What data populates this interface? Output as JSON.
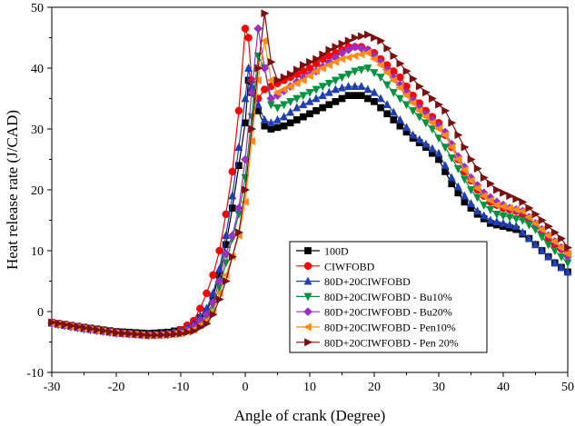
{
  "chart_data": {
    "type": "line",
    "title": "",
    "xlabel": "Angle of crank (Degree)",
    "ylabel": "Heat release rate (J/CAD)",
    "xlim": [
      -30,
      50
    ],
    "ylim": [
      -10,
      50
    ],
    "xticks": [
      -30,
      -20,
      -10,
      0,
      10,
      20,
      30,
      40,
      50
    ],
    "yticks": [
      -10,
      0,
      10,
      20,
      30,
      40,
      50
    ],
    "grid": false,
    "legend_position": "bottom-center",
    "series": [
      {
        "name": "100D",
        "color": "#000000",
        "marker": "square",
        "points": [
          [
            -30,
            -1.8
          ],
          [
            -25,
            -2.6
          ],
          [
            -20,
            -3.3
          ],
          [
            -15,
            -3.6
          ],
          [
            -12,
            -3.4
          ],
          [
            -10,
            -3.0
          ],
          [
            -8,
            -2.0
          ],
          [
            -6,
            0.0
          ],
          [
            -5,
            2.5
          ],
          [
            -4,
            6.0
          ],
          [
            -3,
            11.0
          ],
          [
            -2,
            17.0
          ],
          [
            -1,
            24.0
          ],
          [
            0,
            31.0
          ],
          [
            0.5,
            38.0
          ],
          [
            1,
            36.0
          ],
          [
            2,
            33.0
          ],
          [
            3,
            30.5
          ],
          [
            4,
            30.0
          ],
          [
            6,
            30.5
          ],
          [
            8,
            31.5
          ],
          [
            10,
            32.5
          ],
          [
            12,
            33.5
          ],
          [
            14,
            34.5
          ],
          [
            16,
            35.5
          ],
          [
            18,
            35.5
          ],
          [
            20,
            34.5
          ],
          [
            22,
            32.5
          ],
          [
            24,
            30.5
          ],
          [
            26,
            28.5
          ],
          [
            28,
            27.0
          ],
          [
            30,
            25.0
          ],
          [
            32,
            21.0
          ],
          [
            34,
            18.0
          ],
          [
            36,
            16.0
          ],
          [
            38,
            14.5
          ],
          [
            40,
            14.0
          ],
          [
            42,
            13.5
          ],
          [
            44,
            12.0
          ],
          [
            46,
            10.0
          ],
          [
            48,
            8.0
          ],
          [
            50,
            6.5
          ]
        ]
      },
      {
        "name": "CIWFOBD",
        "color": "#ff0000",
        "marker": "circle",
        "points": [
          [
            -30,
            -1.8
          ],
          [
            -25,
            -2.7
          ],
          [
            -20,
            -3.5
          ],
          [
            -15,
            -3.9
          ],
          [
            -13,
            -3.8
          ],
          [
            -11,
            -3.5
          ],
          [
            -10,
            -3.0
          ],
          [
            -8,
            -1.5
          ],
          [
            -7,
            0.5
          ],
          [
            -6,
            3.0
          ],
          [
            -5,
            6.0
          ],
          [
            -4,
            10.0
          ],
          [
            -3,
            16.0
          ],
          [
            -2,
            23.0
          ],
          [
            -1,
            33.0
          ],
          [
            0,
            46.5
          ],
          [
            0.5,
            45.0
          ],
          [
            1,
            38.0
          ],
          [
            2,
            35.0
          ],
          [
            3,
            36.5
          ],
          [
            4,
            37.0
          ],
          [
            6,
            38.0
          ],
          [
            8,
            39.0
          ],
          [
            10,
            40.0
          ],
          [
            12,
            41.5
          ],
          [
            14,
            42.5
          ],
          [
            16,
            43.5
          ],
          [
            18,
            43.5
          ],
          [
            20,
            42.5
          ],
          [
            22,
            40.5
          ],
          [
            24,
            38.5
          ],
          [
            26,
            35.5
          ],
          [
            28,
            33.0
          ],
          [
            30,
            31.0
          ],
          [
            32,
            27.0
          ],
          [
            34,
            23.0
          ],
          [
            36,
            20.0
          ],
          [
            38,
            18.0
          ],
          [
            40,
            17.0
          ],
          [
            42,
            16.5
          ],
          [
            44,
            15.0
          ],
          [
            46,
            13.0
          ],
          [
            48,
            11.0
          ],
          [
            50,
            9.5
          ]
        ]
      },
      {
        "name": "80D+20CIWFOBD",
        "color": "#1f3fb0",
        "marker": "triangle-up",
        "points": [
          [
            -30,
            -1.9
          ],
          [
            -25,
            -2.8
          ],
          [
            -20,
            -3.5
          ],
          [
            -15,
            -3.8
          ],
          [
            -12,
            -3.6
          ],
          [
            -10,
            -3.2
          ],
          [
            -8,
            -2.0
          ],
          [
            -6,
            0.5
          ],
          [
            -5,
            3.0
          ],
          [
            -4,
            7.0
          ],
          [
            -3,
            12.5
          ],
          [
            -2,
            19.0
          ],
          [
            -1,
            27.0
          ],
          [
            0,
            35.0
          ],
          [
            0.5,
            40.0
          ],
          [
            1,
            37.0
          ],
          [
            2,
            34.0
          ],
          [
            3,
            31.5
          ],
          [
            4,
            31.0
          ],
          [
            6,
            32.0
          ],
          [
            8,
            33.5
          ],
          [
            10,
            34.5
          ],
          [
            12,
            35.5
          ],
          [
            14,
            36.5
          ],
          [
            16,
            37.0
          ],
          [
            18,
            37.0
          ],
          [
            20,
            36.0
          ],
          [
            22,
            34.0
          ],
          [
            24,
            31.5
          ],
          [
            26,
            29.0
          ],
          [
            28,
            27.5
          ],
          [
            30,
            26.0
          ],
          [
            32,
            22.0
          ],
          [
            34,
            19.0
          ],
          [
            36,
            16.5
          ],
          [
            38,
            15.0
          ],
          [
            40,
            14.5
          ],
          [
            42,
            14.0
          ],
          [
            44,
            12.0
          ],
          [
            46,
            10.0
          ],
          [
            48,
            8.0
          ],
          [
            50,
            6.5
          ]
        ]
      },
      {
        "name": "80D+20CIWFOBD - Bu10%",
        "color": "#00923f",
        "marker": "triangle-down",
        "points": [
          [
            -30,
            -2.0
          ],
          [
            -25,
            -2.9
          ],
          [
            -20,
            -3.6
          ],
          [
            -15,
            -3.9
          ],
          [
            -12,
            -3.8
          ],
          [
            -10,
            -3.5
          ],
          [
            -8,
            -2.8
          ],
          [
            -6,
            -1.0
          ],
          [
            -5,
            1.0
          ],
          [
            -4,
            4.0
          ],
          [
            -3,
            8.0
          ],
          [
            -2,
            12.0
          ],
          [
            -1,
            16.0
          ],
          [
            0,
            22.0
          ],
          [
            1,
            32.0
          ],
          [
            2,
            42.0
          ],
          [
            3,
            40.0
          ],
          [
            4,
            34.0
          ],
          [
            5,
            33.5
          ],
          [
            7,
            34.5
          ],
          [
            9,
            35.5
          ],
          [
            11,
            36.5
          ],
          [
            13,
            37.5
          ],
          [
            15,
            38.5
          ],
          [
            17,
            39.5
          ],
          [
            19,
            40.0
          ],
          [
            21,
            38.5
          ],
          [
            23,
            36.0
          ],
          [
            25,
            34.0
          ],
          [
            27,
            32.0
          ],
          [
            29,
            30.0
          ],
          [
            31,
            27.0
          ],
          [
            33,
            23.5
          ],
          [
            35,
            20.0
          ],
          [
            37,
            17.5
          ],
          [
            39,
            16.0
          ],
          [
            41,
            15.5
          ],
          [
            43,
            15.0
          ],
          [
            45,
            13.5
          ],
          [
            47,
            11.0
          ],
          [
            49,
            9.0
          ],
          [
            50,
            8.0
          ]
        ]
      },
      {
        "name": "80D+20CIWFOBD - Bu20%",
        "color": "#9b30c0",
        "marker": "diamond",
        "points": [
          [
            -30,
            -1.9
          ],
          [
            -25,
            -2.8
          ],
          [
            -20,
            -3.5
          ],
          [
            -15,
            -3.9
          ],
          [
            -12,
            -3.8
          ],
          [
            -10,
            -3.5
          ],
          [
            -8,
            -2.5
          ],
          [
            -6,
            -0.5
          ],
          [
            -5,
            1.5
          ],
          [
            -4,
            5.0
          ],
          [
            -3,
            9.5
          ],
          [
            -2,
            12.5
          ],
          [
            -1,
            17.0
          ],
          [
            0,
            25.0
          ],
          [
            1,
            36.0
          ],
          [
            2,
            46.5
          ],
          [
            3,
            40.0
          ],
          [
            4,
            35.0
          ],
          [
            5,
            35.5
          ],
          [
            7,
            37.0
          ],
          [
            9,
            38.5
          ],
          [
            11,
            39.5
          ],
          [
            13,
            41.0
          ],
          [
            15,
            42.5
          ],
          [
            17,
            43.5
          ],
          [
            19,
            43.0
          ],
          [
            21,
            41.0
          ],
          [
            23,
            38.5
          ],
          [
            25,
            36.0
          ],
          [
            27,
            33.5
          ],
          [
            29,
            31.5
          ],
          [
            31,
            29.5
          ],
          [
            33,
            25.5
          ],
          [
            35,
            22.0
          ],
          [
            37,
            19.5
          ],
          [
            39,
            18.0
          ],
          [
            41,
            17.0
          ],
          [
            43,
            16.5
          ],
          [
            45,
            14.5
          ],
          [
            47,
            12.5
          ],
          [
            49,
            10.5
          ],
          [
            50,
            9.0
          ]
        ]
      },
      {
        "name": "80D+20CIWFOBD - Pen10%",
        "color": "#ff8c1a",
        "marker": "triangle-left",
        "points": [
          [
            -30,
            -1.9
          ],
          [
            -25,
            -2.8
          ],
          [
            -20,
            -3.5
          ],
          [
            -15,
            -3.9
          ],
          [
            -12,
            -3.8
          ],
          [
            -10,
            -3.6
          ],
          [
            -8,
            -3.0
          ],
          [
            -6,
            -1.5
          ],
          [
            -5,
            0.0
          ],
          [
            -4,
            3.0
          ],
          [
            -3,
            6.0
          ],
          [
            -2,
            9.0
          ],
          [
            -1,
            12.5
          ],
          [
            0,
            18.0
          ],
          [
            1,
            28.0
          ],
          [
            2,
            38.0
          ],
          [
            3,
            44.5
          ],
          [
            4,
            38.0
          ],
          [
            5,
            36.0
          ],
          [
            7,
            37.0
          ],
          [
            9,
            38.0
          ],
          [
            11,
            39.5
          ],
          [
            13,
            40.5
          ],
          [
            15,
            41.5
          ],
          [
            17,
            42.0
          ],
          [
            19,
            42.5
          ],
          [
            21,
            40.5
          ],
          [
            23,
            38.0
          ],
          [
            25,
            35.5
          ],
          [
            27,
            33.0
          ],
          [
            29,
            31.0
          ],
          [
            31,
            29.0
          ],
          [
            33,
            25.0
          ],
          [
            35,
            21.5
          ],
          [
            37,
            19.0
          ],
          [
            39,
            17.5
          ],
          [
            41,
            17.0
          ],
          [
            43,
            16.5
          ],
          [
            45,
            14.5
          ],
          [
            47,
            12.5
          ],
          [
            49,
            10.5
          ],
          [
            50,
            9.5
          ]
        ]
      },
      {
        "name": "80D+20CIWFOBD - Pen 20%",
        "color": "#7a1010",
        "marker": "triangle-right",
        "points": [
          [
            -30,
            -1.8
          ],
          [
            -25,
            -2.7
          ],
          [
            -20,
            -3.5
          ],
          [
            -15,
            -3.9
          ],
          [
            -12,
            -3.8
          ],
          [
            -10,
            -3.6
          ],
          [
            -8,
            -3.2
          ],
          [
            -6,
            -2.0
          ],
          [
            -5,
            -0.5
          ],
          [
            -4,
            2.0
          ],
          [
            -3,
            5.0
          ],
          [
            -2,
            9.0
          ],
          [
            -1,
            13.0
          ],
          [
            0,
            20.0
          ],
          [
            1,
            30.0
          ],
          [
            2,
            40.0
          ],
          [
            3,
            49.0
          ],
          [
            4,
            41.0
          ],
          [
            5,
            38.0
          ],
          [
            7,
            39.0
          ],
          [
            9,
            40.5
          ],
          [
            11,
            41.5
          ],
          [
            13,
            43.0
          ],
          [
            15,
            44.0
          ],
          [
            17,
            45.0
          ],
          [
            19,
            45.5
          ],
          [
            21,
            44.5
          ],
          [
            23,
            42.0
          ],
          [
            25,
            39.5
          ],
          [
            27,
            37.0
          ],
          [
            29,
            35.0
          ],
          [
            31,
            33.0
          ],
          [
            33,
            29.0
          ],
          [
            35,
            25.0
          ],
          [
            37,
            22.0
          ],
          [
            39,
            20.0
          ],
          [
            41,
            19.0
          ],
          [
            43,
            18.0
          ],
          [
            45,
            16.0
          ],
          [
            47,
            14.0
          ],
          [
            49,
            12.0
          ],
          [
            50,
            10.5
          ]
        ]
      }
    ]
  }
}
